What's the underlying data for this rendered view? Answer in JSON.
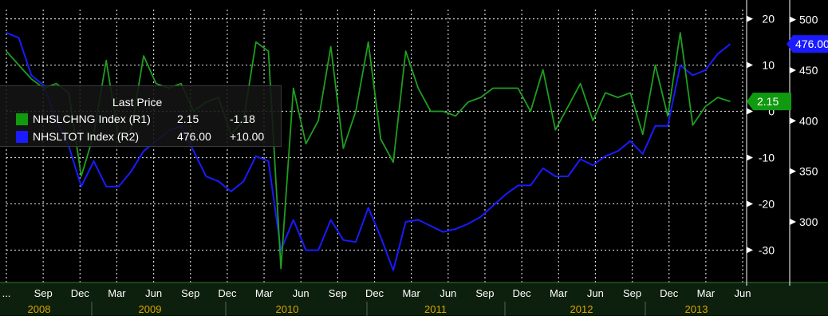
{
  "colors": {
    "background": "#000000",
    "grid": "#d0d0d0",
    "axis_line": "#ffffff",
    "x_axis_band": "#0d1f0d",
    "series_green": "#1f9e1f",
    "series_blue": "#1a1aff",
    "label_green": "#0f9a0f",
    "label_blue": "#1b1bff",
    "text": "#ffffff",
    "year_text": "#d9a400"
  },
  "chart_data": {
    "type": "line",
    "title": "",
    "xlabel": "",
    "x_start": "2008-07",
    "x_end": "2013-06",
    "grid": true,
    "legend_position": "top-left",
    "legend_title": "Last Price",
    "x_tick_labels": [
      "...",
      "Sep",
      "Dec",
      "Mar",
      "Jun",
      "Sep",
      "Dec",
      "Mar",
      "Jun",
      "Sep",
      "Dec",
      "Mar",
      "Jun",
      "Sep",
      "Dec",
      "Mar",
      "Jun",
      "Sep",
      "Dec",
      "Mar",
      "Jun"
    ],
    "x_year_labels": [
      "2008",
      "2009",
      "2010",
      "2011",
      "2012",
      "2013"
    ],
    "axes": {
      "R1": {
        "ylim": [
          -37,
          22
        ],
        "ticks": [
          20,
          10,
          0,
          -10,
          -20,
          -30
        ]
      },
      "R2": {
        "ylim": [
          240,
          510
        ],
        "ticks": [
          500,
          450,
          400,
          350,
          300
        ]
      }
    },
    "series": [
      {
        "name": "NHSLCHNG Index (R1)",
        "axis": "R1",
        "color": "#1f9e1f",
        "last_price": "2.15",
        "change": "-1.18",
        "marker_label": "2.15",
        "values": [
          {
            "x": "2008-07",
            "y": 13
          },
          {
            "x": "2008-08",
            "y": 10
          },
          {
            "x": "2008-09",
            "y": 7
          },
          {
            "x": "2008-10",
            "y": 5
          },
          {
            "x": "2008-11",
            "y": 6
          },
          {
            "x": "2008-12",
            "y": 4
          },
          {
            "x": "2009-01",
            "y": -14
          },
          {
            "x": "2009-02",
            "y": -5
          },
          {
            "x": "2009-03",
            "y": 11
          },
          {
            "x": "2009-04",
            "y": -6
          },
          {
            "x": "2009-05",
            "y": -4
          },
          {
            "x": "2009-06",
            "y": 12
          },
          {
            "x": "2009-07",
            "y": 6
          },
          {
            "x": "2009-08",
            "y": 5
          },
          {
            "x": "2009-09",
            "y": 6
          },
          {
            "x": "2009-10",
            "y": 0
          },
          {
            "x": "2009-11",
            "y": 2
          },
          {
            "x": "2009-12",
            "y": 3
          },
          {
            "x": "2010-01",
            "y": -5
          },
          {
            "x": "2010-02",
            "y": -2
          },
          {
            "x": "2010-03",
            "y": 15
          },
          {
            "x": "2010-04",
            "y": 13
          },
          {
            "x": "2010-05",
            "y": -34
          },
          {
            "x": "2010-06",
            "y": 5
          },
          {
            "x": "2010-07",
            "y": -7
          },
          {
            "x": "2010-08",
            "y": -2
          },
          {
            "x": "2010-09",
            "y": 14
          },
          {
            "x": "2010-10",
            "y": -8
          },
          {
            "x": "2010-11",
            "y": 0
          },
          {
            "x": "2010-12",
            "y": 15
          },
          {
            "x": "2011-01",
            "y": -6
          },
          {
            "x": "2011-02",
            "y": -11
          },
          {
            "x": "2011-03",
            "y": 13
          },
          {
            "x": "2011-04",
            "y": 5
          },
          {
            "x": "2011-05",
            "y": 0
          },
          {
            "x": "2011-06",
            "y": 0
          },
          {
            "x": "2011-07",
            "y": -1
          },
          {
            "x": "2011-08",
            "y": 2
          },
          {
            "x": "2011-09",
            "y": 3
          },
          {
            "x": "2011-10",
            "y": 5
          },
          {
            "x": "2011-11",
            "y": 5
          },
          {
            "x": "2011-12",
            "y": 5
          },
          {
            "x": "2012-01",
            "y": 0
          },
          {
            "x": "2012-02",
            "y": 9
          },
          {
            "x": "2012-03",
            "y": -4
          },
          {
            "x": "2012-04",
            "y": 1
          },
          {
            "x": "2012-05",
            "y": 6
          },
          {
            "x": "2012-06",
            "y": -2
          },
          {
            "x": "2012-07",
            "y": 4
          },
          {
            "x": "2012-08",
            "y": 3
          },
          {
            "x": "2012-09",
            "y": 4
          },
          {
            "x": "2012-10",
            "y": -5
          },
          {
            "x": "2012-11",
            "y": 10
          },
          {
            "x": "2012-12",
            "y": -1
          },
          {
            "x": "2013-01",
            "y": 17
          },
          {
            "x": "2013-02",
            "y": -3
          },
          {
            "x": "2013-03",
            "y": 1
          },
          {
            "x": "2013-04",
            "y": 3
          },
          {
            "x": "2013-05",
            "y": 2.15
          }
        ]
      },
      {
        "name": "NHSLTOT Index (R2)",
        "axis": "R2",
        "color": "#1a1aff",
        "last_price": "476.00",
        "change": "+10.00",
        "marker_label": "476.00",
        "values": [
          {
            "x": "2008-07",
            "y": 487
          },
          {
            "x": "2008-08",
            "y": 482
          },
          {
            "x": "2008-09",
            "y": 445
          },
          {
            "x": "2008-10",
            "y": 435
          },
          {
            "x": "2008-11",
            "y": 400
          },
          {
            "x": "2008-12",
            "y": 375
          },
          {
            "x": "2009-01",
            "y": 335
          },
          {
            "x": "2009-02",
            "y": 360
          },
          {
            "x": "2009-03",
            "y": 335
          },
          {
            "x": "2009-04",
            "y": 335
          },
          {
            "x": "2009-05",
            "y": 350
          },
          {
            "x": "2009-06",
            "y": 370
          },
          {
            "x": "2009-07",
            "y": 380
          },
          {
            "x": "2009-08",
            "y": 390
          },
          {
            "x": "2009-09",
            "y": 395
          },
          {
            "x": "2009-10",
            "y": 370
          },
          {
            "x": "2009-11",
            "y": 345
          },
          {
            "x": "2009-12",
            "y": 340
          },
          {
            "x": "2010-01",
            "y": 330
          },
          {
            "x": "2010-02",
            "y": 340
          },
          {
            "x": "2010-03",
            "y": 365
          },
          {
            "x": "2010-04",
            "y": 360
          },
          {
            "x": "2010-05",
            "y": 272
          },
          {
            "x": "2010-06",
            "y": 302
          },
          {
            "x": "2010-07",
            "y": 272
          },
          {
            "x": "2010-08",
            "y": 272
          },
          {
            "x": "2010-09",
            "y": 302
          },
          {
            "x": "2010-10",
            "y": 282
          },
          {
            "x": "2010-11",
            "y": 280
          },
          {
            "x": "2010-12",
            "y": 314
          },
          {
            "x": "2011-01",
            "y": 285
          },
          {
            "x": "2011-02",
            "y": 252
          },
          {
            "x": "2011-03",
            "y": 300
          },
          {
            "x": "2011-04",
            "y": 302
          },
          {
            "x": "2011-05",
            "y": 296
          },
          {
            "x": "2011-06",
            "y": 290
          },
          {
            "x": "2011-07",
            "y": 293
          },
          {
            "x": "2011-08",
            "y": 298
          },
          {
            "x": "2011-09",
            "y": 305
          },
          {
            "x": "2011-10",
            "y": 316
          },
          {
            "x": "2011-11",
            "y": 327
          },
          {
            "x": "2011-12",
            "y": 336
          },
          {
            "x": "2012-01",
            "y": 336
          },
          {
            "x": "2012-02",
            "y": 353
          },
          {
            "x": "2012-03",
            "y": 345
          },
          {
            "x": "2012-04",
            "y": 345
          },
          {
            "x": "2012-05",
            "y": 362
          },
          {
            "x": "2012-06",
            "y": 356
          },
          {
            "x": "2012-07",
            "y": 365
          },
          {
            "x": "2012-08",
            "y": 370
          },
          {
            "x": "2012-09",
            "y": 380
          },
          {
            "x": "2012-10",
            "y": 367
          },
          {
            "x": "2012-11",
            "y": 395
          },
          {
            "x": "2012-12",
            "y": 395
          },
          {
            "x": "2013-01",
            "y": 455
          },
          {
            "x": "2013-02",
            "y": 445
          },
          {
            "x": "2013-03",
            "y": 450
          },
          {
            "x": "2013-04",
            "y": 466
          },
          {
            "x": "2013-05",
            "y": 476
          }
        ]
      }
    ]
  }
}
